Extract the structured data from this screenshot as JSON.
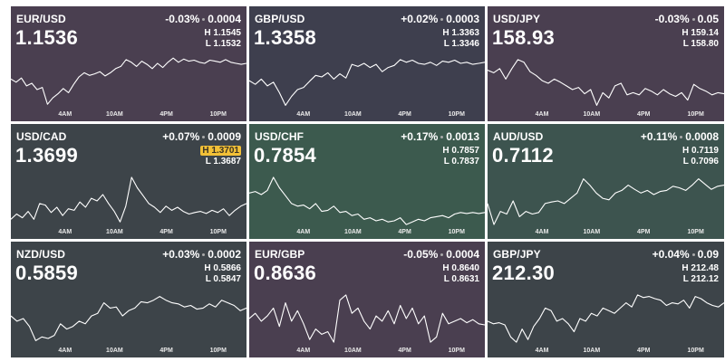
{
  "colors": {
    "purple": "#4a3e4f",
    "slate": "#3c404d",
    "darkslate": "#3d4448",
    "green": "#3c5a4e",
    "teal": "#3d544f",
    "highlight": "#f2c037"
  },
  "axis_labels": [
    "4AM",
    "10AM",
    "4PM",
    "10PM"
  ],
  "panels": [
    {
      "pair": "EUR/USD",
      "price": "1.1536",
      "change_pct": "-0.03%",
      "change_abs": "0.0004",
      "high": "H 1.1545",
      "low": "L 1.1532",
      "high_highlight": false,
      "bg": "#4a3f50",
      "points": [
        0.42,
        0.48,
        0.4,
        0.55,
        0.5,
        0.62,
        0.58,
        0.9,
        0.78,
        0.7,
        0.6,
        0.68,
        0.52,
        0.38,
        0.3,
        0.35,
        0.32,
        0.28,
        0.36,
        0.3,
        0.22,
        0.18,
        0.05,
        0.1,
        0.18,
        0.08,
        0.14,
        0.22,
        0.12,
        0.2,
        0.1,
        0.02,
        0.1,
        0.04,
        0.08,
        0.06,
        0.1,
        0.12,
        0.06,
        0.08,
        0.1,
        0.05,
        0.1,
        0.12,
        0.14,
        0.12
      ]
    },
    {
      "pair": "GBP/USD",
      "price": "1.3358",
      "change_pct": "+0.02%",
      "change_abs": "0.0003",
      "high": "H 1.3363",
      "low": "L 1.3346",
      "high_highlight": false,
      "bg": "#3e3f4e",
      "points": [
        0.45,
        0.52,
        0.42,
        0.55,
        0.48,
        0.68,
        0.92,
        0.75,
        0.62,
        0.58,
        0.46,
        0.35,
        0.38,
        0.3,
        0.42,
        0.32,
        0.4,
        0.14,
        0.18,
        0.12,
        0.2,
        0.14,
        0.28,
        0.2,
        0.16,
        0.05,
        0.1,
        0.06,
        0.12,
        0.14,
        0.1,
        0.16,
        0.08,
        0.1,
        0.06,
        0.12,
        0.1,
        0.14,
        0.12,
        0.1
      ]
    },
    {
      "pair": "USD/JPY",
      "price": "158.93",
      "change_pct": "-0.03%",
      "change_abs": "0.05",
      "high": "H 159.14",
      "low": "L 158.80",
      "high_highlight": false,
      "bg": "#4a3f50",
      "points": [
        0.25,
        0.3,
        0.22,
        0.42,
        0.22,
        0.05,
        0.1,
        0.28,
        0.35,
        0.45,
        0.5,
        0.42,
        0.48,
        0.55,
        0.62,
        0.58,
        0.7,
        0.62,
        0.92,
        0.68,
        0.78,
        0.55,
        0.5,
        0.72,
        0.68,
        0.72,
        0.6,
        0.65,
        0.72,
        0.62,
        0.7,
        0.75,
        0.68,
        0.82,
        0.52,
        0.6,
        0.65,
        0.72,
        0.68,
        0.7
      ]
    },
    {
      "pair": "USD/CAD",
      "price": "1.3699",
      "change_pct": "+0.07%",
      "change_abs": "0.0009",
      "high": "H 1.3701",
      "low": "L 1.3687",
      "high_highlight": true,
      "bg": "#3d4449",
      "points": [
        0.85,
        0.75,
        0.82,
        0.7,
        0.85,
        0.55,
        0.58,
        0.72,
        0.62,
        0.78,
        0.65,
        0.68,
        0.52,
        0.62,
        0.45,
        0.5,
        0.38,
        0.55,
        0.7,
        0.9,
        0.6,
        0.05,
        0.25,
        0.4,
        0.55,
        0.62,
        0.72,
        0.6,
        0.68,
        0.62,
        0.7,
        0.75,
        0.72,
        0.7,
        0.74,
        0.68,
        0.72,
        0.65,
        0.78,
        0.68,
        0.6,
        0.55
      ]
    },
    {
      "pair": "USD/CHF",
      "price": "0.7854",
      "change_pct": "+0.17%",
      "change_abs": "0.0013",
      "high": "H 0.7857",
      "low": "L 0.7837",
      "high_highlight": false,
      "bg": "#3c5a4e",
      "points": [
        0.35,
        0.32,
        0.38,
        0.3,
        0.05,
        0.25,
        0.4,
        0.55,
        0.6,
        0.58,
        0.65,
        0.55,
        0.7,
        0.68,
        0.6,
        0.72,
        0.7,
        0.78,
        0.75,
        0.85,
        0.82,
        0.88,
        0.85,
        0.9,
        0.88,
        0.82,
        0.95,
        0.9,
        0.85,
        0.88,
        0.82,
        0.8,
        0.78,
        0.82,
        0.75,
        0.72,
        0.74,
        0.72,
        0.74,
        0.72
      ]
    },
    {
      "pair": "AUD/USD",
      "price": "0.7112",
      "change_pct": "+0.11%",
      "change_abs": "0.0008",
      "high": "H 0.7119",
      "low": "L 0.7096",
      "high_highlight": false,
      "bg": "#3d544f",
      "points": [
        0.55,
        0.95,
        0.7,
        0.75,
        0.5,
        0.8,
        0.7,
        0.75,
        0.72,
        0.55,
        0.52,
        0.5,
        0.55,
        0.45,
        0.35,
        0.08,
        0.2,
        0.35,
        0.45,
        0.48,
        0.35,
        0.3,
        0.2,
        0.28,
        0.35,
        0.3,
        0.38,
        0.32,
        0.3,
        0.22,
        0.25,
        0.3,
        0.2,
        0.08,
        0.18,
        0.28,
        0.22,
        0.2
      ]
    },
    {
      "pair": "NZD/USD",
      "price": "0.5859",
      "change_pct": "+0.03%",
      "change_abs": "0.0002",
      "high": "H 0.5866",
      "low": "L 0.5847",
      "high_highlight": false,
      "bg": "#3d4449",
      "points": [
        0.45,
        0.55,
        0.5,
        0.65,
        0.92,
        0.85,
        0.88,
        0.82,
        0.6,
        0.7,
        0.65,
        0.55,
        0.6,
        0.45,
        0.4,
        0.2,
        0.3,
        0.28,
        0.45,
        0.35,
        0.3,
        0.18,
        0.2,
        0.15,
        0.08,
        0.15,
        0.2,
        0.22,
        0.28,
        0.25,
        0.32,
        0.3,
        0.22,
        0.28,
        0.15,
        0.2,
        0.25,
        0.35,
        0.3
      ]
    },
    {
      "pair": "EUR/GBP",
      "price": "0.8636",
      "change_pct": "-0.05%",
      "change_abs": "0.0004",
      "high": "H 0.8640",
      "low": "L 0.8631",
      "high_highlight": false,
      "bg": "#4a3f50",
      "points": [
        0.5,
        0.4,
        0.55,
        0.45,
        0.3,
        0.65,
        0.2,
        0.55,
        0.35,
        0.6,
        0.9,
        0.7,
        0.8,
        0.75,
        0.95,
        0.15,
        0.05,
        0.4,
        0.3,
        0.55,
        0.7,
        0.45,
        0.55,
        0.35,
        0.6,
        0.25,
        0.5,
        0.3,
        0.6,
        0.45,
        0.95,
        0.85,
        0.4,
        0.6,
        0.55,
        0.5,
        0.58,
        0.52,
        0.6,
        0.62
      ]
    },
    {
      "pair": "GBP/JPY",
      "price": "212.30",
      "change_pct": "+0.04%",
      "change_abs": "0.09",
      "high": "H 212.48",
      "low": "L 212.12",
      "high_highlight": false,
      "bg": "#3d4449",
      "points": [
        0.55,
        0.6,
        0.58,
        0.62,
        0.85,
        0.95,
        0.7,
        0.9,
        0.65,
        0.5,
        0.3,
        0.35,
        0.55,
        0.5,
        0.6,
        0.75,
        0.5,
        0.55,
        0.4,
        0.45,
        0.3,
        0.35,
        0.4,
        0.3,
        0.2,
        0.28,
        0.05,
        0.1,
        0.08,
        0.12,
        0.15,
        0.25,
        0.2,
        0.22,
        0.15,
        0.3,
        0.08,
        0.12,
        0.2,
        0.25,
        0.28,
        0.2
      ]
    }
  ]
}
